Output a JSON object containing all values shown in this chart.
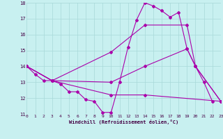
{
  "title": "",
  "xlabel": "Windchill (Refroidissement éolien,°C)",
  "xlim": [
    0,
    23
  ],
  "ylim": [
    11,
    18
  ],
  "yticks": [
    11,
    12,
    13,
    14,
    15,
    16,
    17,
    18
  ],
  "xticks": [
    0,
    1,
    2,
    3,
    4,
    5,
    6,
    7,
    8,
    9,
    10,
    11,
    12,
    13,
    14,
    15,
    16,
    17,
    18,
    19,
    20,
    21,
    22,
    23
  ],
  "bg_color": "#c8f0f0",
  "grid_color": "#a8d8d8",
  "line_color": "#aa00aa",
  "lines": [
    {
      "x": [
        0,
        1,
        2,
        3,
        4,
        5,
        6,
        7,
        8,
        9,
        10,
        11,
        12,
        13,
        14,
        15,
        16,
        17,
        18,
        19,
        20,
        21,
        22
      ],
      "y": [
        14.0,
        13.5,
        13.1,
        13.1,
        12.9,
        12.4,
        12.4,
        11.9,
        11.8,
        11.1,
        11.1,
        13.0,
        15.2,
        16.9,
        18.0,
        17.8,
        17.5,
        17.1,
        17.4,
        15.1,
        14.0,
        13.0,
        11.8
      ]
    },
    {
      "x": [
        0,
        3,
        10,
        14,
        19,
        20,
        23
      ],
      "y": [
        14.0,
        13.1,
        13.0,
        14.0,
        15.1,
        14.0,
        11.8
      ]
    },
    {
      "x": [
        0,
        3,
        10,
        14,
        19,
        20,
        23
      ],
      "y": [
        14.0,
        13.1,
        14.9,
        16.6,
        16.6,
        14.0,
        11.8
      ]
    },
    {
      "x": [
        0,
        3,
        10,
        14,
        23
      ],
      "y": [
        14.0,
        13.1,
        12.2,
        12.2,
        11.8
      ]
    }
  ]
}
